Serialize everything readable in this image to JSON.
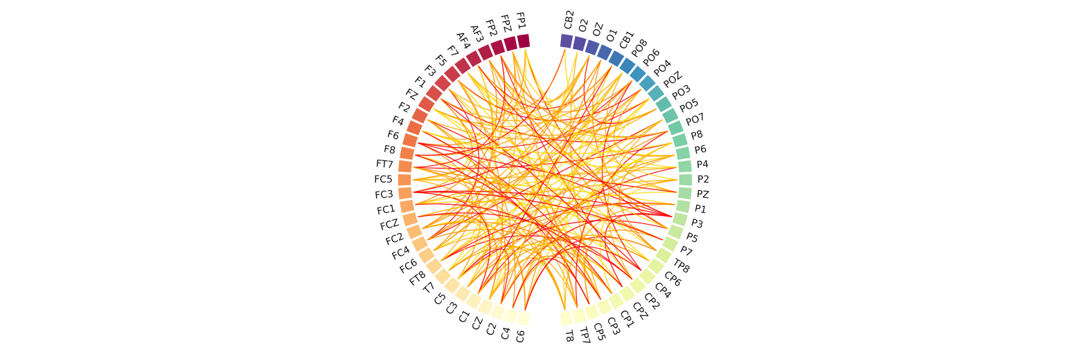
{
  "diagram": {
    "type": "chord-connectivity",
    "left_nodes": [
      "FP1",
      "FPZ",
      "FP2",
      "AF3",
      "AF4",
      "F7",
      "F5",
      "F3",
      "F1",
      "FZ",
      "F2",
      "F4",
      "F6",
      "F8",
      "FT7",
      "FC5",
      "FC3",
      "FC1",
      "FCZ",
      "FC2",
      "FC4",
      "FC6",
      "FT8",
      "T7",
      "C5",
      "C3",
      "C1",
      "CZ",
      "C2",
      "C4",
      "C6"
    ],
    "right_nodes": [
      "CB2",
      "O2",
      "OZ",
      "O1",
      "CB1",
      "PO8",
      "PO6",
      "PO4",
      "POZ",
      "PO3",
      "PO5",
      "PO7",
      "P8",
      "P6",
      "P4",
      "P2",
      "PZ",
      "P1",
      "P3",
      "P5",
      "P7",
      "TP8",
      "CP6",
      "CP4",
      "CP2",
      "CPZ",
      "CP1",
      "CP3",
      "CP5",
      "TP7",
      "T8"
    ],
    "left_colors": [
      "#9e0142",
      "#a30a44",
      "#a91445",
      "#b01e48",
      "#b7284a",
      "#c0324a",
      "#c93c4a",
      "#d2464b",
      "#d9504a",
      "#df5a48",
      "#e56346",
      "#ea6d45",
      "#ee7746",
      "#f28148",
      "#f48b4f",
      "#f69556",
      "#f89f5d",
      "#f9a964",
      "#fbb36c",
      "#fbbd75",
      "#fcc67e",
      "#fccd87",
      "#fdd592",
      "#fedd9d",
      "#fee4a7",
      "#feeab1",
      "#fef0bb",
      "#fef5c4",
      "#fefacd",
      "#fffdd3",
      "#fffdd6"
    ],
    "right_colors": [
      "#5e4fa2",
      "#584fa4",
      "#5159a8",
      "#4867ae",
      "#3f77b2",
      "#3a86b9",
      "#3d93bd",
      "#4aa1be",
      "#57b0b6",
      "#63bbad",
      "#6bc3a8",
      "#72c9a6",
      "#7bcda6",
      "#87d2a7",
      "#92d6a6",
      "#9dd9a5",
      "#a6dda4",
      "#b3e1a4",
      "#bee5a1",
      "#c9e99f",
      "#d4ed9c",
      "#dcf09c",
      "#e4f3a0",
      "#eaf6a4",
      "#eff8a8",
      "#f2f9ad",
      "#f5fab3",
      "#f8fbb9",
      "#f9fcbe",
      "#fbfdc4",
      "#fdfec9"
    ],
    "link_colors": [
      "#ff0000",
      "#ff8c00",
      "#ffd700",
      "#ffa500"
    ],
    "links": [
      [
        0,
        50
      ],
      [
        0,
        12
      ],
      [
        1,
        40
      ],
      [
        1,
        25
      ],
      [
        2,
        55
      ],
      [
        2,
        19
      ],
      [
        3,
        44
      ],
      [
        3,
        60
      ],
      [
        4,
        35
      ],
      [
        4,
        21
      ],
      [
        5,
        47
      ],
      [
        5,
        58
      ],
      [
        6,
        38
      ],
      [
        6,
        27
      ],
      [
        7,
        52
      ],
      [
        7,
        33
      ],
      [
        8,
        42
      ],
      [
        8,
        16
      ],
      [
        9,
        56
      ],
      [
        9,
        36
      ],
      [
        10,
        49
      ],
      [
        10,
        28
      ],
      [
        11,
        45
      ],
      [
        11,
        59
      ],
      [
        12,
        39
      ],
      [
        12,
        24
      ],
      [
        13,
        53
      ],
      [
        13,
        34
      ],
      [
        14,
        43
      ],
      [
        14,
        57
      ],
      [
        15,
        48
      ],
      [
        15,
        26
      ],
      [
        16,
        37
      ],
      [
        16,
        61
      ],
      [
        17,
        51
      ],
      [
        17,
        40
      ],
      [
        18,
        46
      ],
      [
        18,
        30
      ],
      [
        19,
        54
      ],
      [
        19,
        33
      ],
      [
        20,
        41
      ],
      [
        20,
        58
      ],
      [
        21,
        47
      ],
      [
        21,
        35
      ],
      [
        22,
        55
      ],
      [
        22,
        44
      ],
      [
        23,
        38
      ],
      [
        23,
        60
      ],
      [
        24,
        50
      ],
      [
        24,
        42
      ],
      [
        25,
        57
      ],
      [
        25,
        36
      ],
      [
        26,
        45
      ],
      [
        26,
        53
      ],
      [
        27,
        39
      ],
      [
        27,
        61
      ],
      [
        28,
        49
      ],
      [
        28,
        34
      ],
      [
        29,
        43
      ],
      [
        29,
        56
      ],
      [
        30,
        52
      ],
      [
        30,
        37
      ],
      [
        31,
        45
      ],
      [
        32,
        58
      ],
      [
        33,
        40
      ],
      [
        34,
        50
      ],
      [
        35,
        61
      ],
      [
        36,
        47
      ],
      [
        37,
        54
      ],
      [
        38,
        44
      ],
      [
        39,
        59
      ],
      [
        41,
        55
      ],
      [
        42,
        60
      ],
      [
        43,
        52
      ],
      [
        46,
        57
      ],
      [
        48,
        61
      ],
      [
        49,
        56
      ],
      [
        51,
        59
      ],
      [
        0,
        5
      ],
      [
        1,
        9
      ],
      [
        2,
        14
      ],
      [
        3,
        17
      ],
      [
        4,
        23
      ],
      [
        6,
        11
      ],
      [
        7,
        20
      ],
      [
        8,
        29
      ],
      [
        10,
        15
      ],
      [
        13,
        22
      ],
      [
        16,
        26
      ],
      [
        18,
        27
      ],
      [
        19,
        25
      ],
      [
        21,
        30
      ],
      [
        24,
        28
      ],
      [
        3,
        49
      ],
      [
        6,
        55
      ],
      [
        9,
        40
      ],
      [
        12,
        59
      ],
      [
        15,
        34
      ],
      [
        18,
        46
      ],
      [
        20,
        37
      ],
      [
        22,
        48
      ],
      [
        25,
        53
      ],
      [
        27,
        32
      ],
      [
        29,
        41
      ],
      [
        11,
        57
      ],
      [
        14,
        51
      ],
      [
        17,
        44
      ],
      [
        23,
        61
      ],
      [
        26,
        35
      ],
      [
        28,
        58
      ],
      [
        30,
        43
      ],
      [
        5,
        39
      ],
      [
        8,
        54
      ],
      [
        2,
        33
      ],
      [
        0,
        46
      ],
      [
        10,
        60
      ],
      [
        13,
        31
      ],
      [
        1,
        52
      ],
      [
        4,
        42
      ],
      [
        7,
        58
      ],
      [
        16,
        49
      ],
      [
        19,
        38
      ],
      [
        24,
        56
      ],
      [
        21,
        36
      ],
      [
        12,
        47
      ],
      [
        6,
        31
      ],
      [
        9,
        50
      ],
      [
        15,
        45
      ],
      [
        18,
        55
      ],
      [
        20,
        33
      ],
      [
        22,
        41
      ],
      [
        27,
        52
      ],
      [
        29,
        59
      ],
      [
        3,
        37
      ],
      [
        11,
        43
      ],
      [
        14,
        61
      ],
      [
        17,
        56
      ],
      [
        23,
        48
      ],
      [
        26,
        39
      ],
      [
        28,
        44
      ],
      [
        30,
        54
      ],
      [
        2,
        42
      ],
      [
        5,
        53
      ],
      [
        8,
        35
      ],
      [
        13,
        58
      ],
      [
        25,
        46
      ],
      [
        0,
        33
      ],
      [
        10,
        40
      ],
      [
        16,
        51
      ],
      [
        19,
        57
      ],
      [
        24,
        36
      ],
      [
        1,
        60
      ],
      [
        4,
        49
      ]
    ]
  }
}
